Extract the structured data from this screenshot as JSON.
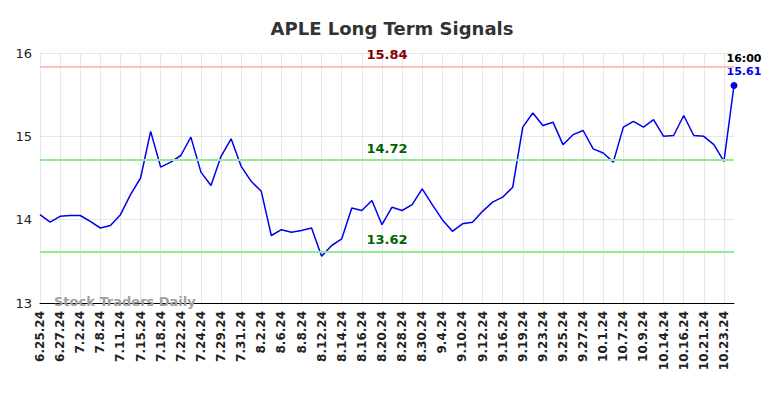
{
  "chart_data": {
    "type": "line",
    "title": "APLE Long Term Signals",
    "categories": [
      "6.25.24",
      null,
      "6.27.24",
      null,
      "7.2.24",
      null,
      "7.8.24",
      null,
      "7.11.24",
      null,
      "7.15.24",
      null,
      "7.18.24",
      null,
      "7.22.24",
      null,
      "7.24.24",
      null,
      "7.29.24",
      null,
      "7.31.24",
      null,
      "8.2.24",
      null,
      "8.6.24",
      null,
      "8.8.24",
      null,
      "8.12.24",
      null,
      "8.14.24",
      null,
      "8.16.24",
      null,
      "8.20.24",
      null,
      "8.28.24",
      null,
      "8.30.24",
      null,
      "9.4.24",
      null,
      "9.10.24",
      null,
      "9.12.24",
      null,
      "9.16.24",
      null,
      "9.19.24",
      null,
      "9.23.24",
      null,
      "9.25.24",
      null,
      "9.27.24",
      null,
      "10.1.24",
      null,
      "10.7.24",
      null,
      "10.9.24",
      null,
      "10.14.24",
      null,
      "10.16.24",
      null,
      "10.21.24",
      null,
      "10.23.24",
      null
    ],
    "values": [
      14.06,
      13.97,
      14.04,
      14.05,
      14.05,
      13.98,
      13.9,
      13.93,
      14.06,
      14.3,
      14.5,
      15.06,
      14.63,
      14.69,
      14.77,
      14.99,
      14.57,
      14.41,
      14.76,
      14.97,
      14.64,
      14.46,
      14.34,
      13.81,
      13.88,
      13.85,
      13.87,
      13.9,
      13.56,
      13.69,
      13.77,
      14.14,
      14.11,
      14.23,
      13.94,
      14.15,
      14.11,
      14.18,
      14.37,
      14.18,
      14.0,
      13.86,
      13.95,
      13.97,
      14.1,
      14.21,
      14.27,
      14.39,
      15.11,
      15.28,
      15.13,
      15.17,
      14.9,
      15.02,
      15.07,
      14.85,
      14.8,
      14.69,
      15.11,
      15.18,
      15.11,
      15.2,
      15.0,
      15.01,
      15.25,
      15.01,
      15.0,
      14.9,
      14.7,
      15.61
    ],
    "color": "#0000ee",
    "ylim": [
      13,
      16
    ],
    "yticks": [
      13,
      14,
      15,
      16
    ],
    "grid": true,
    "signal_lines": [
      {
        "value": 15.84,
        "color": "#ffc0c0",
        "text_color": "#8b0000"
      },
      {
        "value": 14.72,
        "color": "#90ee90",
        "text_color": "#006400"
      },
      {
        "value": 13.62,
        "color": "#90ee90",
        "text_color": "#006400"
      }
    ],
    "last_point": {
      "time": "16:00"
    },
    "watermark": "Stock Traders Daily"
  }
}
